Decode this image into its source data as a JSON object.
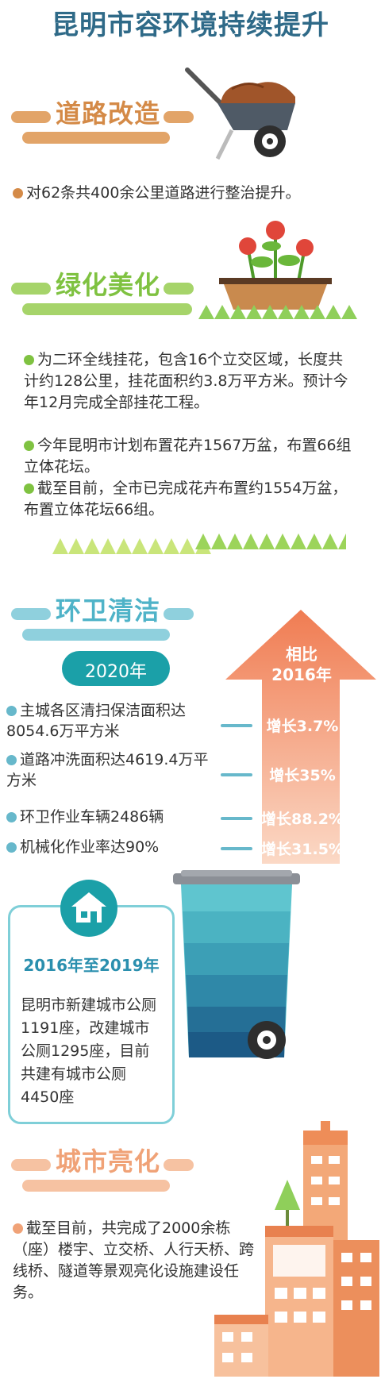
{
  "title": "昆明市容环境持续提升",
  "sections": {
    "road": {
      "title": "道路改造",
      "items": [
        "对62条共400余公里道路进行整治提升。"
      ]
    },
    "green": {
      "title": "绿化美化",
      "items": [
        "为二环全线挂花，包含16个立交区域，长度共计约128公里，挂花面积约3.8万平方米。预计今年12月完成全部挂花工程。",
        "今年昆明市计划布置花卉1567万盆，布置66组立体花坛。",
        "截至目前，全市已完成花卉布置约1554万盆，布置立体花坛66组。"
      ]
    },
    "sanitation": {
      "title": "环卫清洁",
      "year_badge": "2020年",
      "compare_line1": "相比",
      "compare_line2": "2016年",
      "stats": [
        {
          "text": "主城各区清扫保洁面积达8054.6万平方米",
          "growth": "增长3.7%"
        },
        {
          "text": "道路冲洗面积达4619.4万平方米",
          "growth": "增长35%"
        },
        {
          "text": "环卫作业车辆2486辆",
          "growth": "增长88.2%"
        },
        {
          "text": "机械化作业率达90%",
          "growth": "增长31.5%"
        }
      ],
      "toilet_period": "2016年至2019年",
      "toilet_text": "昆明市新建城市公厕1191座，改建城市公厕1295座，目前共建有城市公厕4450座"
    },
    "lighting": {
      "title": "城市亮化",
      "items": [
        "截至目前，共完成了2000余栋（座）楼宇、立交桥、人行天桥、跨线桥、隧道等景观亮化设施建设任务。"
      ]
    }
  },
  "colors": {
    "title": "#2f6a88",
    "road": "#d48a47",
    "green": "#7fc241",
    "sanitation": "#4fb3c8",
    "lighting": "#f0a277",
    "arrow": "#f08b5f"
  }
}
